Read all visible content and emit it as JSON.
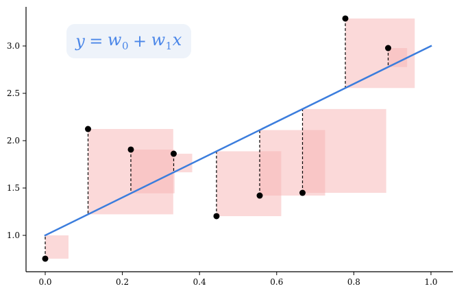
{
  "chart_data": {
    "type": "scatter",
    "title": "",
    "xlabel": "",
    "ylabel": "",
    "xlim": [
      -0.05,
      1.05
    ],
    "ylim": [
      0.63,
      3.4
    ],
    "x_ticks": [
      0.0,
      0.2,
      0.4,
      0.6,
      0.8,
      1.0
    ],
    "x_tick_labels": [
      "0.0",
      "0.2",
      "0.4",
      "0.6",
      "0.8",
      "1.0"
    ],
    "y_ticks": [
      1.0,
      1.5,
      2.0,
      2.5,
      3.0
    ],
    "y_tick_labels": [
      "1.0",
      "1.5",
      "2.0",
      "2.5",
      "3.0"
    ],
    "grid": false,
    "annotation": {
      "text": "y = w0 + w1x",
      "y": "y",
      "w0": "w",
      "w0_sub": "0",
      "plus": "+",
      "equals": "=",
      "w1": "w",
      "w1_sub": "1",
      "x": "x"
    },
    "model_line": {
      "w0": 1.0,
      "w1": 2.0,
      "x_start": 0.0,
      "x_end": 1.0,
      "color": "#3b7ddd"
    },
    "points": {
      "x": [
        0.0,
        0.111,
        0.222,
        0.333,
        0.444,
        0.556,
        0.667,
        0.778,
        0.889
      ],
      "y": [
        0.754,
        2.123,
        1.906,
        1.862,
        1.203,
        1.42,
        1.449,
        3.29,
        2.978
      ],
      "color": "#000000"
    },
    "residual_lines": {
      "style": "dashed",
      "color": "#000000"
    },
    "residual_squares": {
      "color": "#f8b4b4",
      "opacity": 0.5
    }
  },
  "colors": {
    "line": "#3b7ddd",
    "equation_text": "#4a86e8",
    "equation_bg": "#eef3fa",
    "squares": "#f8b4b4"
  }
}
